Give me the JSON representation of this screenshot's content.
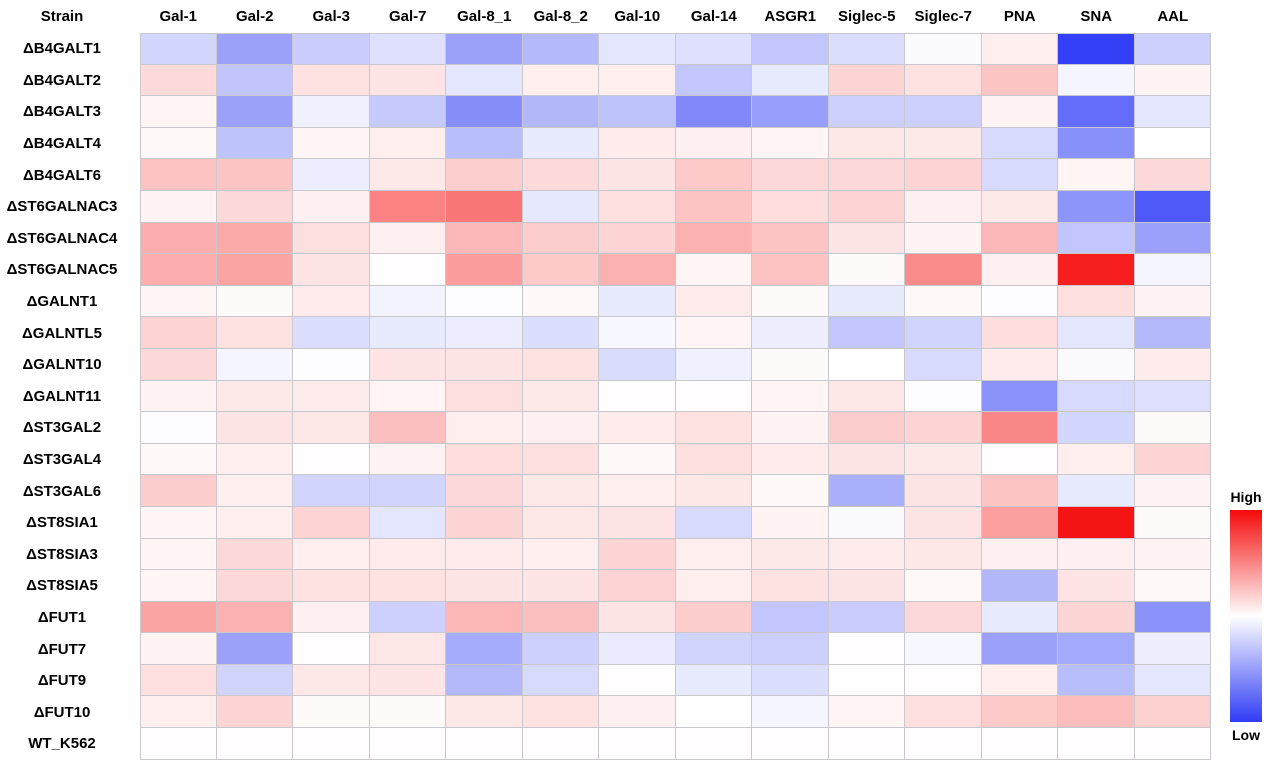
{
  "chart_data": {
    "type": "heatmap",
    "corner_label": "Strain",
    "columns": [
      "Gal-1",
      "Gal-2",
      "Gal-3",
      "Gal-7",
      "Gal-8_1",
      "Gal-8_2",
      "Gal-10",
      "Gal-14",
      "ASGR1",
      "Siglec-5",
      "Siglec-7",
      "PNA",
      "SNA",
      "AAL"
    ],
    "rows": [
      "ΔB4GALT1",
      "ΔB4GALT2",
      "ΔB4GALT3",
      "ΔB4GALT4",
      "ΔB4GALT6",
      "ΔST6GALNAC3",
      "ΔST6GALNAC4",
      "ΔST6GALNAC5",
      "ΔGALNT1",
      "ΔGALNTL5",
      "ΔGALNT10",
      "ΔGALNT11",
      "ΔST3GAL2",
      "ΔST3GAL4",
      "ΔST3GAL6",
      "ΔST8SIA1",
      "ΔST8SIA3",
      "ΔST8SIA5",
      "ΔFUT1",
      "ΔFUT7",
      "ΔFUT9",
      "ΔFUT10",
      "WT_K562"
    ],
    "values": [
      [
        -0.21,
        -0.48,
        -0.26,
        -0.16,
        -0.48,
        -0.36,
        -0.13,
        -0.16,
        -0.29,
        -0.17,
        -0.02,
        0.07,
        -0.98,
        -0.24
      ],
      [
        0.15,
        -0.3,
        0.12,
        0.11,
        -0.13,
        0.07,
        0.07,
        -0.29,
        -0.11,
        0.17,
        0.12,
        0.24,
        -0.05,
        0.05
      ],
      [
        0.04,
        -0.48,
        -0.07,
        -0.27,
        -0.58,
        -0.37,
        -0.31,
        -0.61,
        -0.5,
        -0.24,
        -0.24,
        0.05,
        -0.75,
        -0.13
      ],
      [
        0.03,
        -0.31,
        0.04,
        0.07,
        -0.34,
        -0.11,
        0.08,
        0.06,
        0.04,
        0.1,
        0.09,
        -0.19,
        -0.57,
        0.0
      ],
      [
        0.25,
        0.24,
        -0.09,
        0.09,
        0.2,
        0.15,
        0.11,
        0.22,
        0.16,
        0.16,
        0.18,
        -0.19,
        0.04,
        0.16
      ],
      [
        0.05,
        0.16,
        0.06,
        0.51,
        0.56,
        -0.12,
        0.13,
        0.24,
        0.14,
        0.18,
        0.06,
        0.09,
        -0.55,
        -0.85
      ],
      [
        0.33,
        0.35,
        0.13,
        0.06,
        0.29,
        0.21,
        0.17,
        0.32,
        0.24,
        0.11,
        0.05,
        0.29,
        -0.29,
        -0.48
      ],
      [
        0.33,
        0.37,
        0.11,
        0.01,
        0.4,
        0.22,
        0.32,
        0.04,
        0.25,
        0.02,
        0.47,
        0.06,
        0.92,
        -0.05
      ],
      [
        0.04,
        0.02,
        0.08,
        -0.06,
        -0.01,
        0.03,
        -0.11,
        0.08,
        0.02,
        -0.11,
        0.03,
        -0.01,
        0.13,
        0.05
      ],
      [
        0.18,
        0.12,
        -0.17,
        -0.11,
        -0.09,
        -0.17,
        -0.04,
        0.04,
        -0.08,
        -0.29,
        -0.22,
        0.14,
        -0.13,
        -0.36
      ],
      [
        0.16,
        -0.05,
        -0.01,
        0.11,
        0.11,
        0.12,
        -0.18,
        -0.07,
        0.02,
        0.0,
        -0.19,
        0.08,
        -0.02,
        0.08
      ],
      [
        0.05,
        0.09,
        0.08,
        0.04,
        0.13,
        0.09,
        0.01,
        0.01,
        0.04,
        0.1,
        -0.01,
        -0.56,
        -0.19,
        -0.16
      ],
      [
        -0.01,
        0.11,
        0.1,
        0.26,
        0.07,
        0.06,
        0.08,
        0.12,
        0.05,
        0.21,
        0.17,
        0.49,
        -0.21,
        0.02
      ],
      [
        0.03,
        0.07,
        0.01,
        0.05,
        0.14,
        0.13,
        0.03,
        0.13,
        0.08,
        0.11,
        0.09,
        0.01,
        0.07,
        0.17
      ],
      [
        0.21,
        0.07,
        -0.22,
        -0.22,
        0.16,
        0.09,
        0.07,
        0.1,
        0.03,
        -0.41,
        0.11,
        0.24,
        -0.11,
        0.05
      ],
      [
        0.04,
        0.07,
        0.18,
        -0.13,
        0.17,
        0.1,
        0.11,
        -0.19,
        0.05,
        -0.02,
        0.11,
        0.39,
        0.96,
        0.02
      ],
      [
        0.04,
        0.16,
        0.07,
        0.08,
        0.08,
        0.07,
        0.17,
        0.07,
        0.09,
        0.08,
        0.1,
        0.06,
        0.06,
        0.05
      ],
      [
        0.04,
        0.16,
        0.12,
        0.12,
        0.11,
        0.11,
        0.18,
        0.07,
        0.12,
        0.11,
        0.03,
        -0.37,
        0.11,
        0.03
      ],
      [
        0.37,
        0.32,
        0.06,
        -0.24,
        0.3,
        0.26,
        0.11,
        0.21,
        -0.29,
        -0.26,
        0.16,
        -0.11,
        0.17,
        -0.56
      ],
      [
        0.05,
        -0.48,
        0.01,
        0.1,
        -0.43,
        -0.24,
        -0.1,
        -0.22,
        -0.24,
        0.01,
        -0.04,
        -0.48,
        -0.44,
        -0.08
      ],
      [
        0.13,
        -0.22,
        0.1,
        0.11,
        -0.36,
        -0.19,
        0.01,
        -0.11,
        -0.17,
        0.0,
        0.01,
        0.07,
        -0.34,
        -0.13
      ],
      [
        0.07,
        0.17,
        0.02,
        0.02,
        0.1,
        0.12,
        0.06,
        0.0,
        -0.05,
        0.04,
        0.13,
        0.22,
        0.27,
        0.19
      ],
      [
        0.01,
        0.01,
        0.01,
        0.01,
        0.01,
        0.01,
        0.01,
        0.01,
        0.01,
        0.01,
        0.01,
        0.01,
        0.01,
        0.01
      ]
    ],
    "value_range": [
      -1,
      1
    ],
    "grid": true,
    "gridline_color": "#c9c9cd",
    "colormap": {
      "high": "#f50a0a",
      "mid": "#ffffff",
      "low": "#2f3cf6"
    },
    "legend": {
      "position": "right",
      "high_label": "High",
      "low_label": "Low"
    }
  }
}
